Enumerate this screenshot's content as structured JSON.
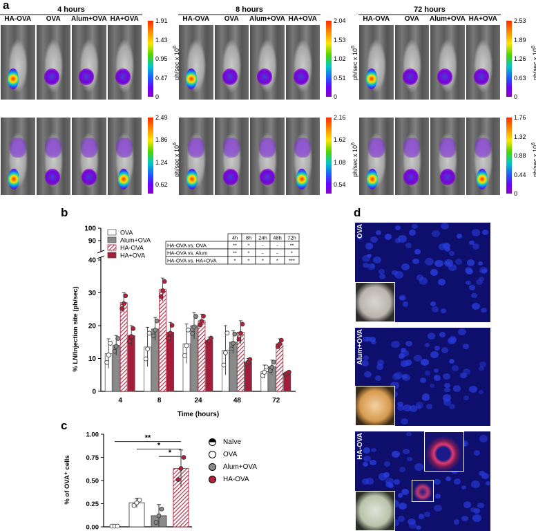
{
  "panels": {
    "a": "a",
    "b": "b",
    "c": "c",
    "d": "d"
  },
  "panel_a": {
    "groups": [
      {
        "title": "4 hours",
        "columns": [
          "HA-OVA",
          "OVA",
          "Alum+OVA",
          "HA+OVA"
        ],
        "scale_top": [
          "1.91",
          "1.43",
          "0.95",
          "0.47",
          "0"
        ],
        "scale_bottom": [
          "2.49",
          "1.86",
          "1.24",
          "0.62"
        ]
      },
      {
        "title": "8 hours",
        "columns": [
          "HA-OVA",
          "OVA",
          "Alum+OVA",
          "HA+OVA"
        ],
        "scale_top": [
          "2.04",
          "1.53",
          "1.02",
          "0.51",
          "0"
        ],
        "scale_bottom": [
          "2.16",
          "1.62",
          "1.08",
          "0.54"
        ]
      },
      {
        "title": "72 hours",
        "columns": [
          "HA-OVA",
          "OVA",
          "Alum+OVA",
          "HA+OVA"
        ],
        "scale_top": [
          "2.53",
          "1.89",
          "1.26",
          "0.63",
          "0"
        ],
        "scale_bottom": [
          "1.76",
          "1.32",
          "0.88",
          "0.44",
          "0"
        ]
      }
    ],
    "scale_unit": "ph/sec x 10",
    "scale_exp": "6"
  },
  "chart_data": [
    {
      "type": "bar",
      "panel": "b",
      "xlabel": "Time (hours)",
      "ylabel": "% LN/Injection site (ph/sec)",
      "categories": [
        "4",
        "8",
        "24",
        "48",
        "72"
      ],
      "yticks": [
        "0",
        "10",
        "20",
        "30",
        "40",
        "90",
        "100"
      ],
      "ylim_lower": [
        0,
        40
      ],
      "ylim_upper": [
        90,
        100
      ],
      "series": [
        {
          "name": "OVA",
          "color": "#ffffff",
          "values": [
            11.5,
            13.5,
            14.5,
            12.5,
            6.0
          ],
          "err": [
            4.5,
            6.0,
            6.0,
            7.5,
            2.0
          ]
        },
        {
          "name": "Alum+OVA",
          "color": "#8a8a8a",
          "values": [
            14.0,
            19.0,
            20.0,
            15.0,
            7.5
          ],
          "err": [
            3.0,
            3.5,
            4.0,
            3.5,
            2.0
          ]
        },
        {
          "name": "HA-OVA",
          "color": "#b5213c",
          "hatch": true,
          "values": [
            27.0,
            31.0,
            21.5,
            18.0,
            14.5
          ],
          "err": [
            3.0,
            3.5,
            2.0,
            3.5,
            1.5
          ]
        },
        {
          "name": "HA+OVA",
          "color": "#a31d3a",
          "values": [
            17.0,
            18.0,
            15.5,
            9.0,
            5.5
          ],
          "err": [
            3.0,
            3.0,
            1.0,
            1.0,
            0.5
          ]
        }
      ],
      "table": {
        "header": [
          "",
          "4h",
          "8h",
          "24h",
          "48h",
          "72h"
        ],
        "rows": [
          [
            "HA-OVA vs. OVA",
            "**",
            "*",
            "-",
            "-",
            "**"
          ],
          [
            "HA-OVA vs. Alum",
            "**",
            "*",
            "-",
            "-",
            "*"
          ],
          [
            "HA-OVA vs. HA+OVA",
            "*",
            "*",
            "*",
            "*",
            "***"
          ]
        ]
      }
    },
    {
      "type": "bar",
      "panel": "c",
      "ylabel": "% of OVA⁺ cells",
      "yticks": [
        "0.00",
        "0.25",
        "0.50",
        "0.75",
        "1.00"
      ],
      "ylim": [
        0,
        1.0
      ],
      "categories": [
        "Naïve",
        "OVA",
        "Alum+OVA",
        "HA-OVA"
      ],
      "values": [
        0.0,
        0.26,
        0.12,
        0.63
      ],
      "err": [
        0.0,
        0.05,
        0.12,
        0.2
      ],
      "colors": [
        "#ffffff",
        "#ffffff",
        "#8a8a8a",
        "#b5213c"
      ],
      "legend": [
        "Naïve",
        "OVA",
        "Alum+OVA",
        "HA-OVA"
      ],
      "significance": [
        "**",
        "*",
        "*"
      ]
    }
  ],
  "panel_d": {
    "labels": [
      "OVA",
      "Alum+OVA",
      "HA-OVA"
    ]
  }
}
